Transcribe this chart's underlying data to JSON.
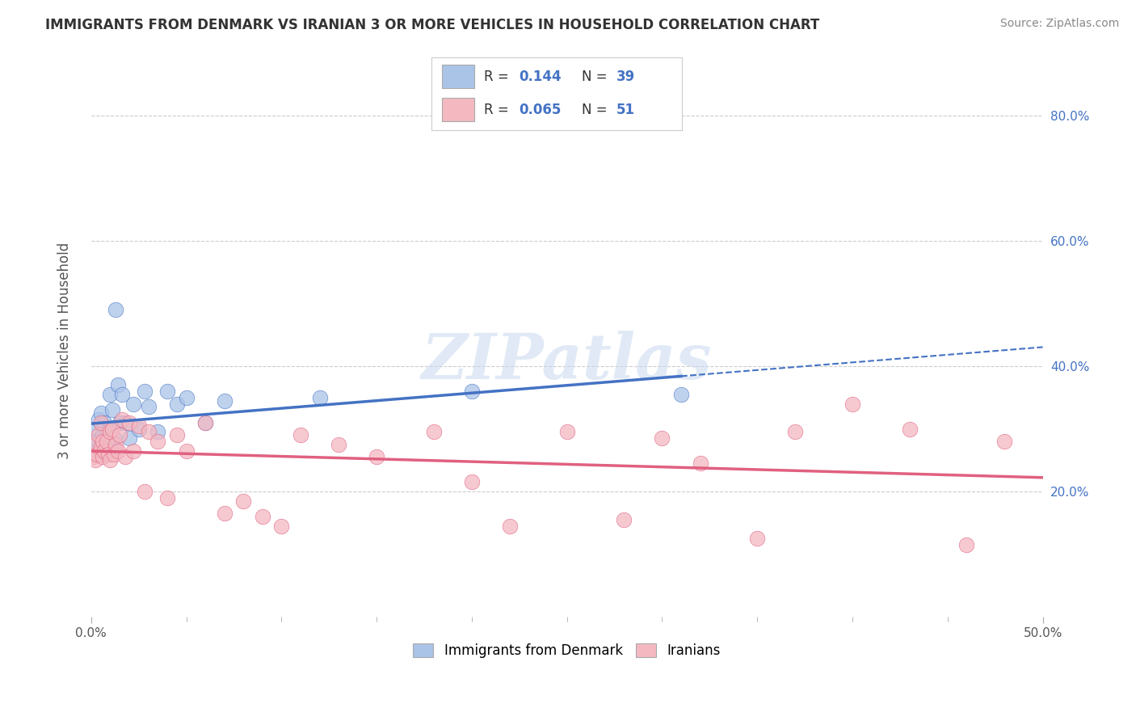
{
  "title": "IMMIGRANTS FROM DENMARK VS IRANIAN 3 OR MORE VEHICLES IN HOUSEHOLD CORRELATION CHART",
  "source": "Source: ZipAtlas.com",
  "ylabel": "3 or more Vehicles in Household",
  "xmin": 0.0,
  "xmax": 0.5,
  "ymin": 0.0,
  "ymax": 0.85,
  "yticks_right": [
    0.2,
    0.4,
    0.6,
    0.8
  ],
  "ytick_labels_right": [
    "20.0%",
    "40.0%",
    "60.0%",
    "80.0%"
  ],
  "xtick_major": [
    0.0,
    0.5
  ],
  "xtick_major_labels": [
    "0.0%",
    "50.0%"
  ],
  "xtick_minor": [
    0.05,
    0.1,
    0.15,
    0.2,
    0.25,
    0.3,
    0.35,
    0.4,
    0.45
  ],
  "blue_color": "#4472c4",
  "blue_fill": "#aac4e8",
  "pink_color": "#e06080",
  "pink_fill": "#f4b8c1",
  "grid_color": "#cccccc",
  "background_color": "#ffffff",
  "title_color": "#333333",
  "right_axis_color": "#4472c4",
  "watermark": "ZIPatlas",
  "legend_labels": [
    "Immigrants from Denmark",
    "Iranians"
  ],
  "R_blue": "0.144",
  "N_blue": "39",
  "R_pink": "0.065",
  "N_pink": "51",
  "blue_scatter_x": [
    0.001,
    0.002,
    0.003,
    0.003,
    0.004,
    0.004,
    0.005,
    0.005,
    0.006,
    0.006,
    0.007,
    0.007,
    0.008,
    0.008,
    0.009,
    0.01,
    0.01,
    0.011,
    0.012,
    0.012,
    0.013,
    0.014,
    0.015,
    0.016,
    0.018,
    0.02,
    0.022,
    0.025,
    0.028,
    0.03,
    0.035,
    0.04,
    0.045,
    0.05,
    0.06,
    0.07,
    0.12,
    0.2,
    0.31
  ],
  "blue_scatter_y": [
    0.26,
    0.28,
    0.265,
    0.3,
    0.27,
    0.315,
    0.285,
    0.325,
    0.26,
    0.29,
    0.275,
    0.31,
    0.265,
    0.295,
    0.28,
    0.3,
    0.355,
    0.33,
    0.27,
    0.285,
    0.49,
    0.37,
    0.31,
    0.355,
    0.31,
    0.285,
    0.34,
    0.3,
    0.36,
    0.335,
    0.295,
    0.36,
    0.34,
    0.35,
    0.31,
    0.345,
    0.35,
    0.36,
    0.355
  ],
  "pink_scatter_x": [
    0.001,
    0.002,
    0.002,
    0.003,
    0.004,
    0.005,
    0.005,
    0.006,
    0.006,
    0.007,
    0.008,
    0.009,
    0.01,
    0.01,
    0.011,
    0.012,
    0.013,
    0.014,
    0.015,
    0.016,
    0.018,
    0.02,
    0.022,
    0.025,
    0.028,
    0.03,
    0.035,
    0.04,
    0.045,
    0.05,
    0.06,
    0.07,
    0.08,
    0.09,
    0.1,
    0.11,
    0.13,
    0.15,
    0.18,
    0.2,
    0.22,
    0.25,
    0.28,
    0.3,
    0.32,
    0.35,
    0.37,
    0.4,
    0.43,
    0.46,
    0.48
  ],
  "pink_scatter_y": [
    0.255,
    0.275,
    0.25,
    0.26,
    0.29,
    0.27,
    0.31,
    0.28,
    0.255,
    0.265,
    0.28,
    0.26,
    0.295,
    0.25,
    0.3,
    0.26,
    0.275,
    0.265,
    0.29,
    0.315,
    0.255,
    0.31,
    0.265,
    0.305,
    0.2,
    0.295,
    0.28,
    0.19,
    0.29,
    0.265,
    0.31,
    0.165,
    0.185,
    0.16,
    0.145,
    0.29,
    0.275,
    0.255,
    0.295,
    0.215,
    0.145,
    0.295,
    0.155,
    0.285,
    0.245,
    0.125,
    0.295,
    0.34,
    0.3,
    0.115,
    0.28
  ]
}
